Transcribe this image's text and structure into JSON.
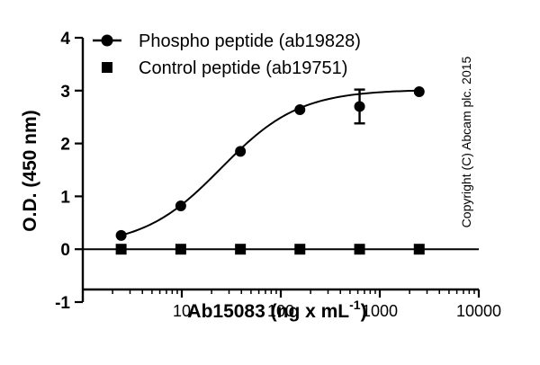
{
  "chart_data": {
    "type": "scatter",
    "title": "",
    "xlabel": "Ab15083 (ng x mL",
    "xlabel_superscript": "-1",
    "xlabel_suffix": ")",
    "ylabel": "O.D. (450 nm)",
    "x_scale": "log",
    "xlim": [
      1,
      10000
    ],
    "ylim": [
      -1,
      4
    ],
    "x_ticks": [
      10,
      100,
      1000,
      10000
    ],
    "x_tick_labels": [
      "10",
      "100",
      "1000",
      "10000"
    ],
    "y_ticks": [
      -1,
      0,
      1,
      2,
      3,
      4
    ],
    "y_tick_labels": [
      "-1",
      "0",
      "1",
      "2",
      "3",
      "4"
    ],
    "legend_position": "top-left",
    "annotation": "Copyright (C) Abcam plc. 2015",
    "series": [
      {
        "name": "Phospho peptide (ab19828)",
        "marker": "circle",
        "x": [
          2.44,
          9.77,
          39.1,
          156,
          625,
          2500
        ],
        "y": [
          0.26,
          0.82,
          1.85,
          2.64,
          2.7,
          2.98
        ],
        "y_error": [
          0,
          0,
          0,
          0,
          0.32,
          0
        ],
        "fit": "sigmoidal",
        "fit_params": {
          "bottom": 0.05,
          "top": 3.02,
          "ec50": 25,
          "hill": 1.1
        }
      },
      {
        "name": "Control peptide (ab19751)",
        "marker": "square",
        "x": [
          2.44,
          9.77,
          39.1,
          156,
          625,
          2500
        ],
        "y": [
          0,
          0,
          0,
          0,
          0,
          0
        ],
        "fit": "flat"
      }
    ]
  }
}
